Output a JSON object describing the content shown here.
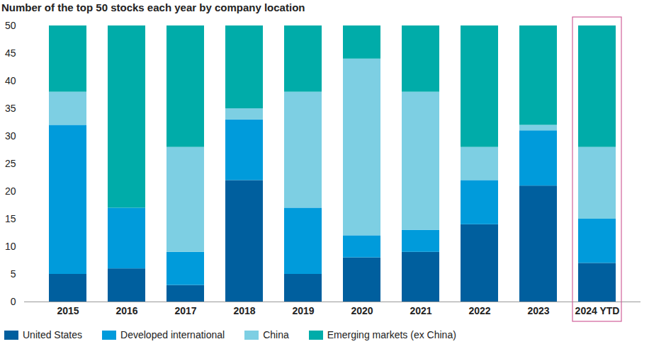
{
  "chart_data": {
    "type": "bar",
    "title": "Number of the top 50 stocks each year by company location",
    "categories": [
      "2015",
      "2016",
      "2017",
      "2018",
      "2019",
      "2020",
      "2021",
      "2022",
      "2023",
      "2024 YTD"
    ],
    "series": [
      {
        "name": "United States",
        "color": "#005f9e",
        "values": [
          5,
          6,
          3,
          22,
          5,
          8,
          9,
          14,
          21,
          7
        ]
      },
      {
        "name": "Developed international",
        "color": "#009bdb",
        "values": [
          27,
          11,
          6,
          11,
          12,
          4,
          4,
          8,
          10,
          8
        ]
      },
      {
        "name": "China",
        "color": "#7dcfe3",
        "values": [
          6,
          0,
          19,
          2,
          21,
          32,
          25,
          6,
          1,
          13
        ]
      },
      {
        "name": "Emerging markets (ex China)",
        "color": "#00aca9",
        "values": [
          12,
          33,
          22,
          15,
          12,
          6,
          12,
          22,
          18,
          22
        ]
      }
    ],
    "ylim": [
      0,
      50
    ],
    "yticks": [
      0,
      5,
      10,
      15,
      20,
      25,
      30,
      35,
      40,
      45,
      50
    ],
    "stacked": true,
    "grid": false,
    "legend": "bottom"
  }
}
